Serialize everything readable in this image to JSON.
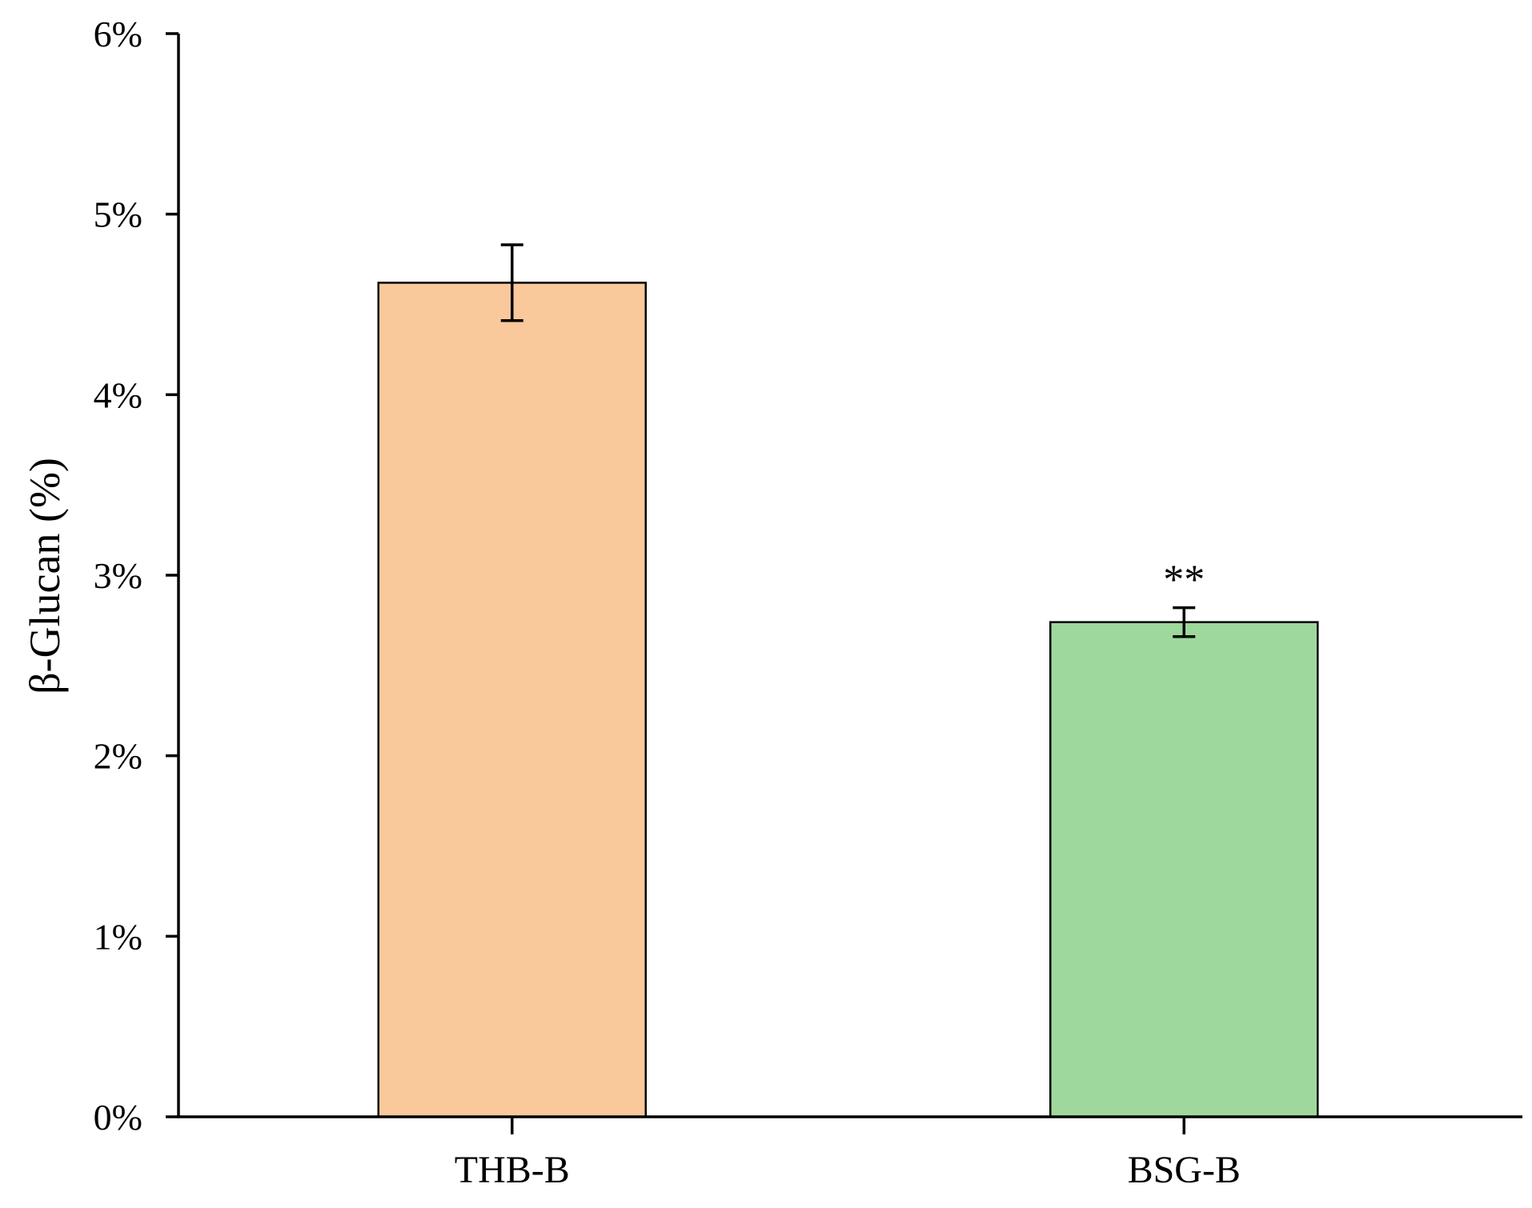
{
  "chart_data": {
    "type": "bar",
    "title": "",
    "xlabel": "",
    "ylabel": "β-Glucan (%)",
    "categories": [
      "THB-B",
      "BSG-B"
    ],
    "values": [
      4.62,
      2.74
    ],
    "errors": [
      0.21,
      0.08
    ],
    "significance": [
      "",
      "**"
    ],
    "colors": [
      "#f9c89b",
      "#9ed89c"
    ],
    "bar_stroke": "#000000",
    "ylim": [
      0,
      6
    ],
    "yticks": [
      0,
      1,
      2,
      3,
      4,
      5,
      6
    ],
    "ytick_labels": [
      "0%",
      "1%",
      "2%",
      "3%",
      "4%",
      "5%",
      "6%"
    ],
    "grid": false,
    "legend": "none"
  }
}
